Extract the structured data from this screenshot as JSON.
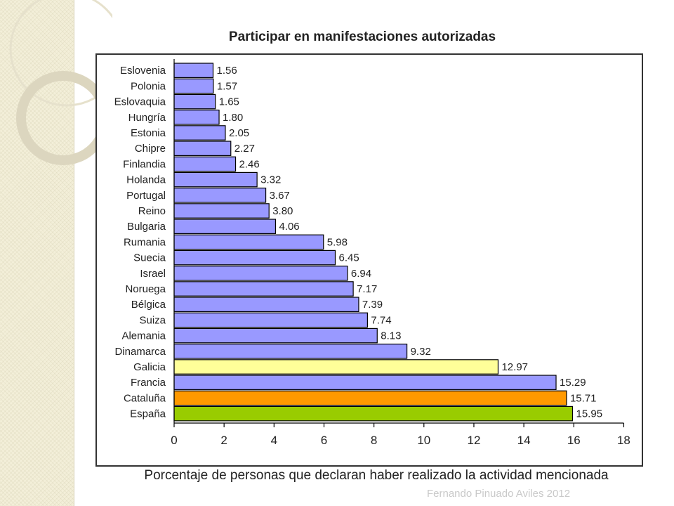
{
  "slide": {
    "footer": "Fernando Pinuado Aviles 2012",
    "theme_colors": {
      "panel": "#f3efd9",
      "ring": "#e6e1cc"
    }
  },
  "chart_data": {
    "type": "bar",
    "orientation": "horizontal",
    "title": "Participar en manifestaciones autorizadas",
    "xlabel": "Porcentaje de personas que declaran haber realizado la actividad mencionada",
    "ylabel": "",
    "xlim": [
      0,
      18
    ],
    "xticks": [
      0,
      2,
      4,
      6,
      8,
      10,
      12,
      14,
      16,
      18
    ],
    "grid": false,
    "categories": [
      "Eslovenia",
      "Polonia",
      "Eslovaquia",
      "Hungría",
      "Estonia",
      "Chipre",
      "Finlandia",
      "Holanda",
      "Portugal",
      "Reino",
      "Bulgaria",
      "Rumania",
      "Suecia",
      "Israel",
      "Noruega",
      "Bélgica",
      "Suiza",
      "Alemania",
      "Dinamarca",
      "Galicia",
      "Francia",
      "Cataluña",
      "España"
    ],
    "values": [
      1.56,
      1.57,
      1.65,
      1.8,
      2.05,
      2.27,
      2.46,
      3.32,
      3.67,
      3.8,
      4.06,
      5.98,
      6.45,
      6.94,
      7.17,
      7.39,
      7.74,
      8.13,
      9.32,
      12.97,
      15.29,
      15.71,
      15.95
    ],
    "value_labels": [
      "1.56",
      "1.57",
      "1.65",
      "1.80",
      "2.05",
      "2.27",
      "2.46",
      "3.32",
      "3.67",
      "3.80",
      "4.06",
      "5.98",
      "6.45",
      "6.94",
      "7.17",
      "7.39",
      "7.74",
      "8.13",
      "9.32",
      "12.97",
      "15.29",
      "15.71",
      "15.95"
    ],
    "bar_colors": [
      "#9999ff",
      "#9999ff",
      "#9999ff",
      "#9999ff",
      "#9999ff",
      "#9999ff",
      "#9999ff",
      "#9999ff",
      "#9999ff",
      "#9999ff",
      "#9999ff",
      "#9999ff",
      "#9999ff",
      "#9999ff",
      "#9999ff",
      "#9999ff",
      "#9999ff",
      "#9999ff",
      "#9999ff",
      "#ffff99",
      "#9999ff",
      "#ff9900",
      "#99cc00"
    ]
  }
}
